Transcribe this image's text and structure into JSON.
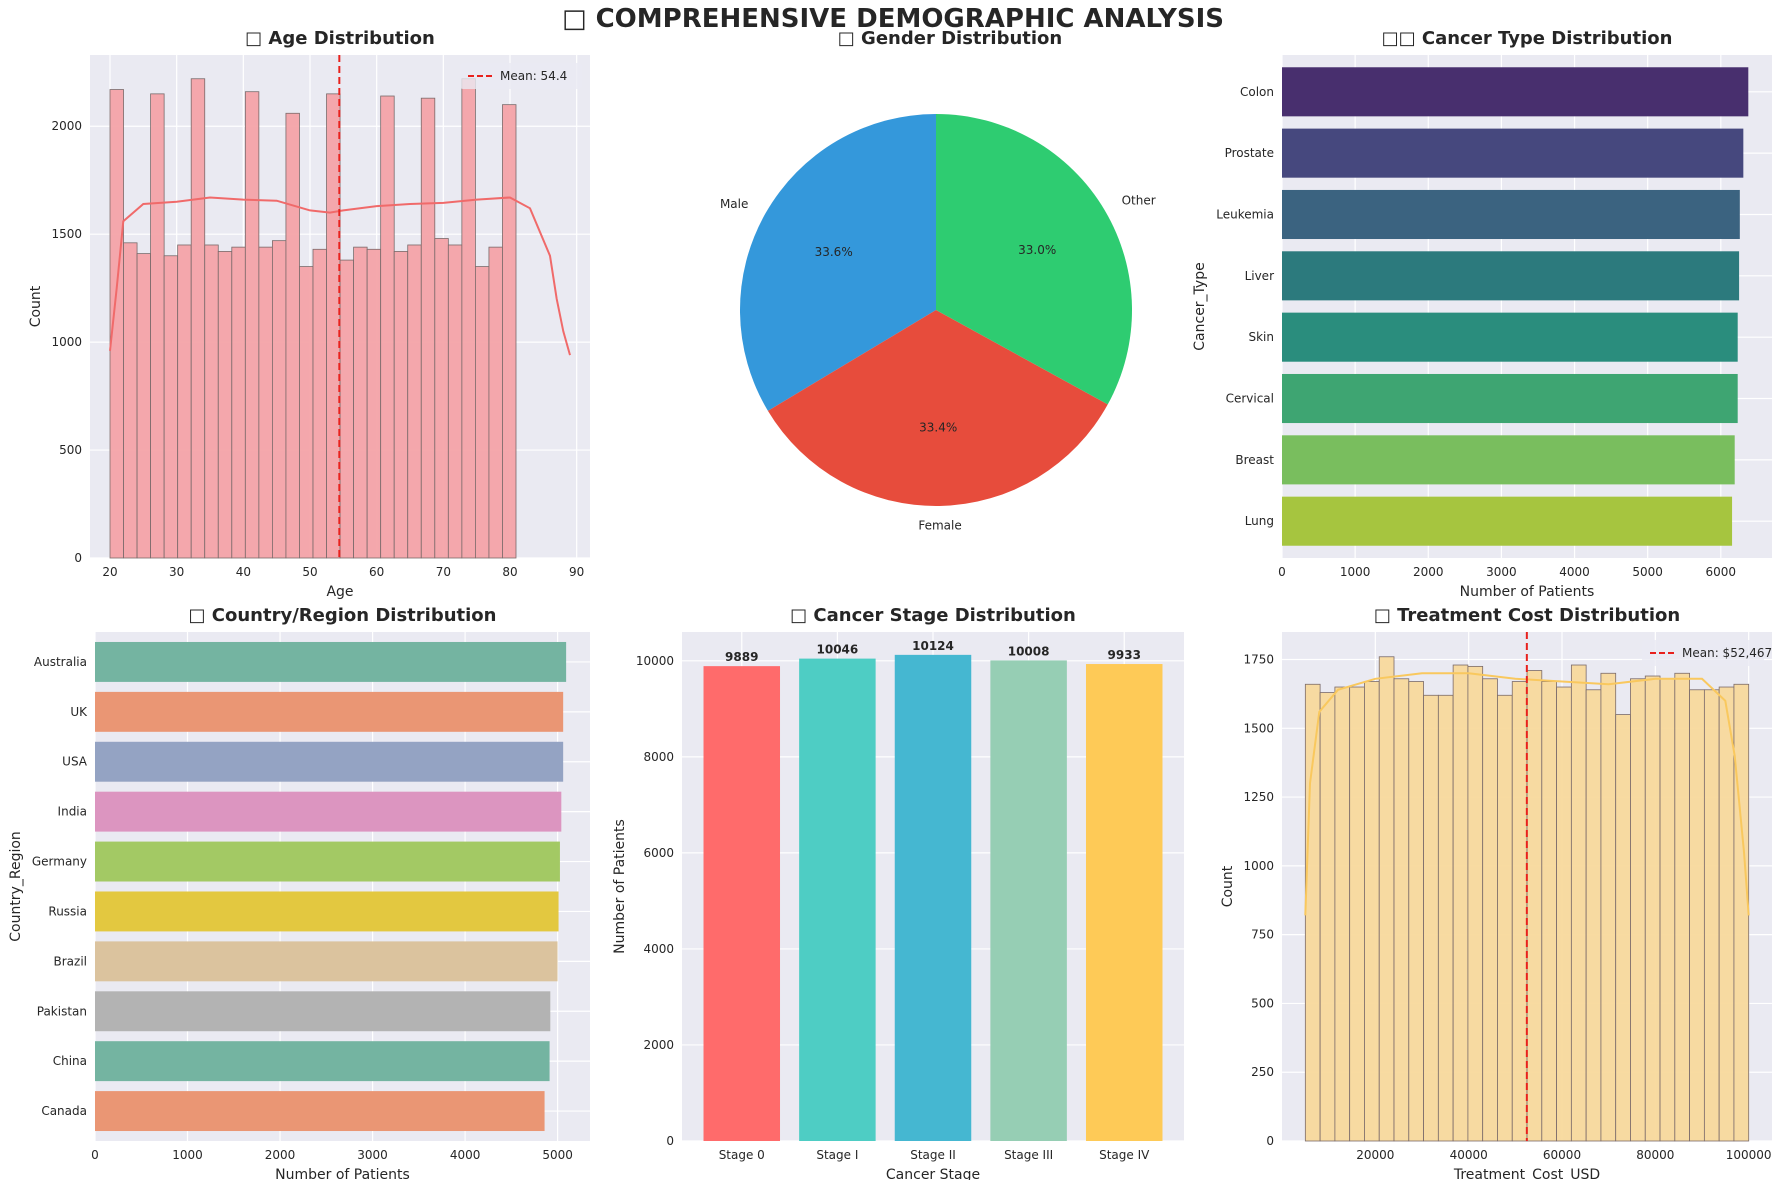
{
  "title": "□ COMPREHENSIVE DEMOGRAPHIC ANALYSIS",
  "chart_data": [
    {
      "type": "bar",
      "title": "□ Age Distribution",
      "xlabel": "Age",
      "ylabel": "Count",
      "xlim": [
        17,
        92
      ],
      "ylim": [
        0,
        2330
      ],
      "xticks": [
        20,
        30,
        40,
        50,
        60,
        70,
        80,
        90
      ],
      "yticks": [
        0,
        500,
        1000,
        1500,
        2000
      ],
      "bin_start": 20,
      "bin_width": 2.03,
      "values": [
        2170,
        1460,
        1410,
        2150,
        1400,
        1450,
        2220,
        1450,
        1420,
        1440,
        2160,
        1440,
        1470,
        2060,
        1350,
        1430,
        2150,
        1380,
        1440,
        1430,
        2140,
        1420,
        1450,
        2130,
        1480,
        1450,
        2220,
        1350,
        1440,
        2100
      ],
      "kde": {
        "x": [
          20,
          21,
          22,
          25,
          30,
          35,
          40,
          45,
          50,
          53,
          55,
          60,
          65,
          70,
          75,
          80,
          83,
          86,
          87,
          88,
          89
        ],
        "y": [
          960,
          1250,
          1560,
          1640,
          1650,
          1670,
          1660,
          1655,
          1610,
          1600,
          1610,
          1630,
          1640,
          1645,
          1660,
          1670,
          1620,
          1400,
          1200,
          1050,
          940
        ]
      },
      "mean_line": {
        "value": 54.4,
        "label": "Mean: 54.4"
      },
      "legend": "top-right",
      "grid": true,
      "color": "#f4a3a8"
    },
    {
      "type": "pie",
      "title": "□ Gender Distribution",
      "labels": [
        "Male",
        "Female",
        "Other"
      ],
      "values": [
        33.6,
        33.4,
        33.0
      ],
      "value_labels": [
        "33.6%",
        "33.4%",
        "33.0%"
      ],
      "colors": [
        "#3498db",
        "#e74c3c",
        "#2ecc71"
      ],
      "start_angle_deg": 90,
      "direction": "counterclockwise"
    },
    {
      "type": "bar",
      "orientation": "horizontal",
      "title": "□□ Cancer Type Distribution",
      "xlabel": "Number of Patients",
      "ylabel": "Cancer_Type",
      "categories": [
        "Colon",
        "Prostate",
        "Leukemia",
        "Liver",
        "Skin",
        "Cervical",
        "Breast",
        "Lung"
      ],
      "values": [
        6376,
        6308,
        6260,
        6250,
        6231,
        6231,
        6190,
        6154
      ],
      "xlim": [
        0,
        6700
      ],
      "xticks": [
        0,
        1000,
        2000,
        3000,
        4000,
        5000,
        6000
      ],
      "colors": [
        "#482f6e",
        "#46487e",
        "#3b6380",
        "#2c7a7d",
        "#2a8d7d",
        "#3ea572",
        "#79be5e",
        "#a6c53f"
      ],
      "grid": true
    },
    {
      "type": "bar",
      "orientation": "horizontal",
      "title": "□ Country/Region Distribution",
      "xlabel": "Number of Patients",
      "ylabel": "Country_Region",
      "categories": [
        "Australia",
        "UK",
        "USA",
        "India",
        "Germany",
        "Russia",
        "Brazil",
        "Pakistan",
        "China",
        "Canada"
      ],
      "values": [
        5092,
        5060,
        5060,
        5040,
        5025,
        5010,
        4999,
        4921,
        4913,
        4859
      ],
      "xlim": [
        0,
        5350
      ],
      "xticks": [
        0,
        1000,
        2000,
        3000,
        4000,
        5000
      ],
      "colors": [
        "#74b4a1",
        "#ea9674",
        "#94a3c3",
        "#dc95c0",
        "#a3c964",
        "#e3c840",
        "#dbc39e",
        "#b3b3b3",
        "#74b4a1",
        "#ea9674"
      ],
      "grid": true
    },
    {
      "type": "bar",
      "title": "□ Cancer Stage Distribution",
      "xlabel": "Cancer Stage",
      "ylabel": "Number of Patients",
      "categories": [
        "Stage 0",
        "Stage I",
        "Stage II",
        "Stage III",
        "Stage IV"
      ],
      "values": [
        9889,
        10046,
        10124,
        10008,
        9933
      ],
      "value_labels": [
        "9889",
        "10046",
        "10124",
        "10008",
        "9933"
      ],
      "ylim": [
        0,
        10600
      ],
      "yticks": [
        0,
        2000,
        4000,
        6000,
        8000,
        10000
      ],
      "colors": [
        "#ff6b6b",
        "#4ecdc4",
        "#45b7d1",
        "#96ceb4",
        "#feca57"
      ],
      "grid": true
    },
    {
      "type": "bar",
      "title": "□ Treatment Cost Distribution",
      "xlabel": "Treatment_Cost_USD",
      "ylabel": "Count",
      "xlim": [
        0,
        105000
      ],
      "ylim": [
        0,
        1850
      ],
      "xticks": [
        20000,
        40000,
        60000,
        80000,
        100000
      ],
      "yticks": [
        0,
        250,
        500,
        750,
        1000,
        1250,
        1500,
        1750
      ],
      "bin_start": 5000,
      "bin_width": 3167,
      "values": [
        1660,
        1630,
        1650,
        1650,
        1670,
        1760,
        1680,
        1670,
        1620,
        1620,
        1730,
        1725,
        1680,
        1620,
        1670,
        1710,
        1670,
        1650,
        1730,
        1640,
        1700,
        1550,
        1680,
        1690,
        1680,
        1700,
        1640,
        1640,
        1650,
        1660
      ],
      "kde": {
        "x": [
          5000,
          6000,
          8000,
          12000,
          20000,
          30000,
          40000,
          50000,
          60000,
          70000,
          80000,
          90000,
          95000,
          97000,
          99000,
          100000
        ],
        "y": [
          820,
          1300,
          1560,
          1640,
          1680,
          1700,
          1700,
          1680,
          1670,
          1660,
          1680,
          1680,
          1600,
          1400,
          1050,
          820
        ]
      },
      "mean_line": {
        "value": 52467,
        "label": "Mean: $52,467"
      },
      "legend": "top-right",
      "grid": true,
      "color": "#f8d99c"
    }
  ]
}
